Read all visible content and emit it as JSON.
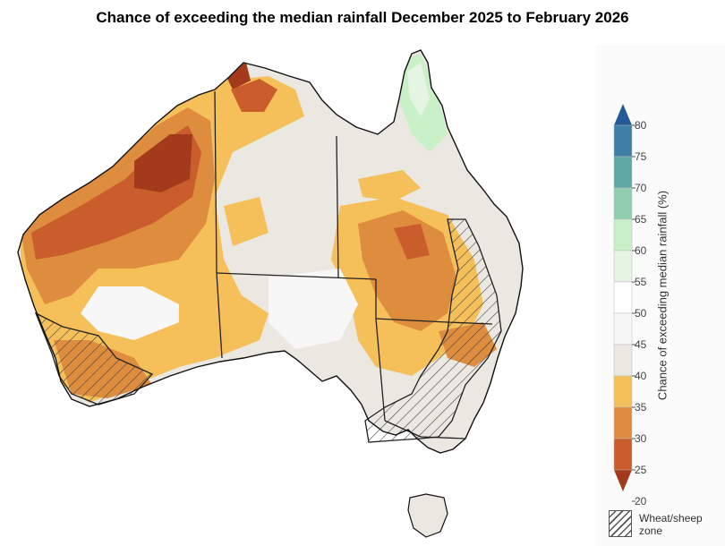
{
  "title": "Chance of exceeding the median rainfall December 2025 to February 2026",
  "colorbar": {
    "label": "Chance of exceeding median rainfall (%)",
    "ticks": [
      "80",
      "75",
      "70",
      "65",
      "60",
      "55",
      "50",
      "45",
      "40",
      "35",
      "30",
      "25",
      "20"
    ],
    "bands": [
      {
        "range": "20-25",
        "color": "#a33a1c"
      },
      {
        "range": "25-30",
        "color": "#c95e2c"
      },
      {
        "range": "30-35",
        "color": "#de8c3e"
      },
      {
        "range": "35-40",
        "color": "#f5c05a"
      },
      {
        "range": "40-45",
        "color": "#ebe8e2"
      },
      {
        "range": "45-50",
        "color": "#f7f7f7"
      },
      {
        "range": "50-55",
        "color": "#ffffff"
      },
      {
        "range": "55-60",
        "color": "#e6f5e3"
      },
      {
        "range": "60-65",
        "color": "#c9f0c6"
      },
      {
        "range": "65-70",
        "color": "#8fcfb0"
      },
      {
        "range": "70-75",
        "color": "#5fa8a6"
      },
      {
        "range": "75-80",
        "color": "#3f7ea6"
      },
      {
        "range": ">80",
        "color": "#245b96"
      }
    ]
  },
  "legend": {
    "wheat_sheep_label": "Wheat/sheep zone"
  }
}
